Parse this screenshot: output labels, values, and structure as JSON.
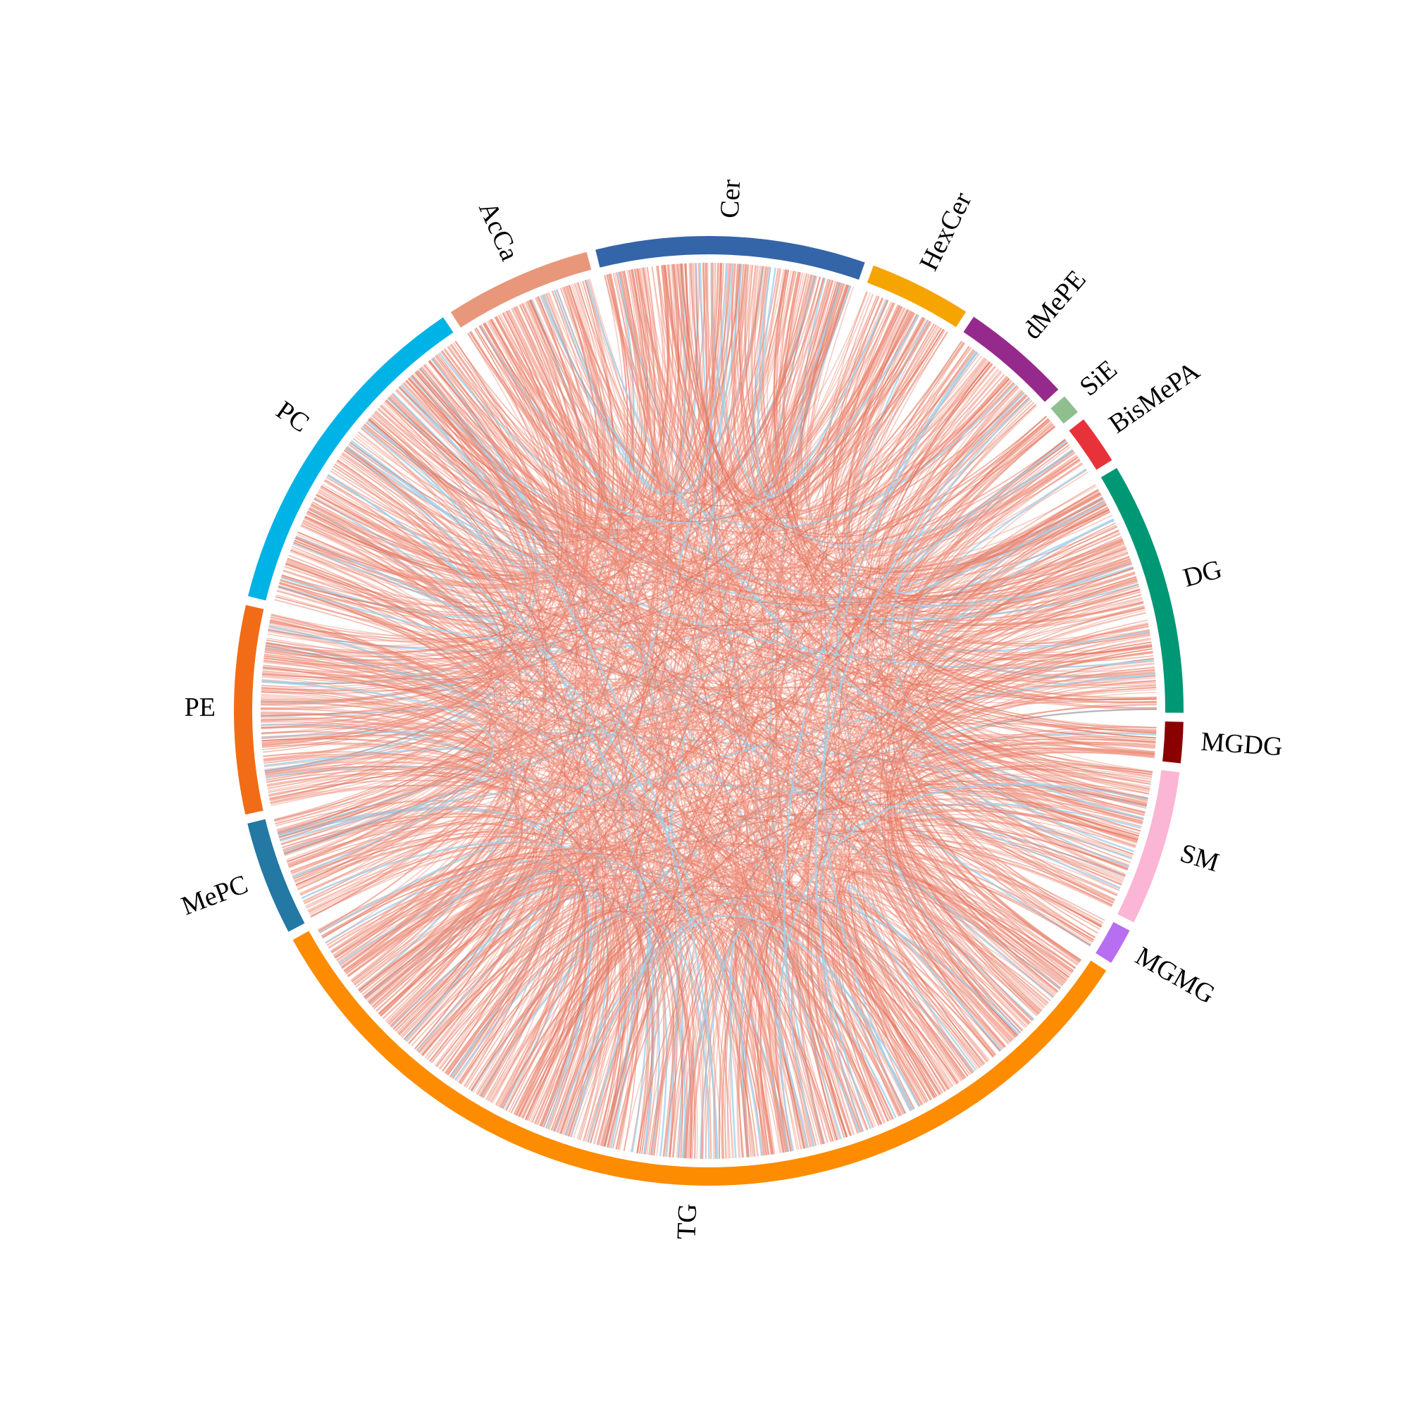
{
  "sectors": [
    {
      "name": "Cer",
      "color": "#3465a9",
      "value": 33
    },
    {
      "name": "HexCer",
      "color": "#f6a400",
      "value": 12.5
    },
    {
      "name": "dMePE",
      "color": "#962a8c",
      "value": 13.5
    },
    {
      "name": "SiE",
      "color": "#8fbf8f",
      "value": 2.5
    },
    {
      "name": "BisMePA",
      "color": "#e8323a",
      "value": 6
    },
    {
      "name": "DG",
      "color": "#009775",
      "value": 31
    },
    {
      "name": "MGDG",
      "color": "#8b0000",
      "value": 5
    },
    {
      "name": "SM",
      "color": "#fbb5d5",
      "value": 19
    },
    {
      "name": "MGMG",
      "color": "#b86ef0",
      "value": 4.5
    },
    {
      "name": "TG",
      "color": "#fd8c00",
      "value": 118
    },
    {
      "name": "MePC",
      "color": "#2478a4",
      "value": 14
    },
    {
      "name": "PE",
      "color": "#f26c17",
      "value": 25.5
    },
    {
      "name": "PC",
      "color": "#00b3e6",
      "value": 42
    },
    {
      "name": "AcCa",
      "color": "#e8977a",
      "value": 18
    }
  ]
}
